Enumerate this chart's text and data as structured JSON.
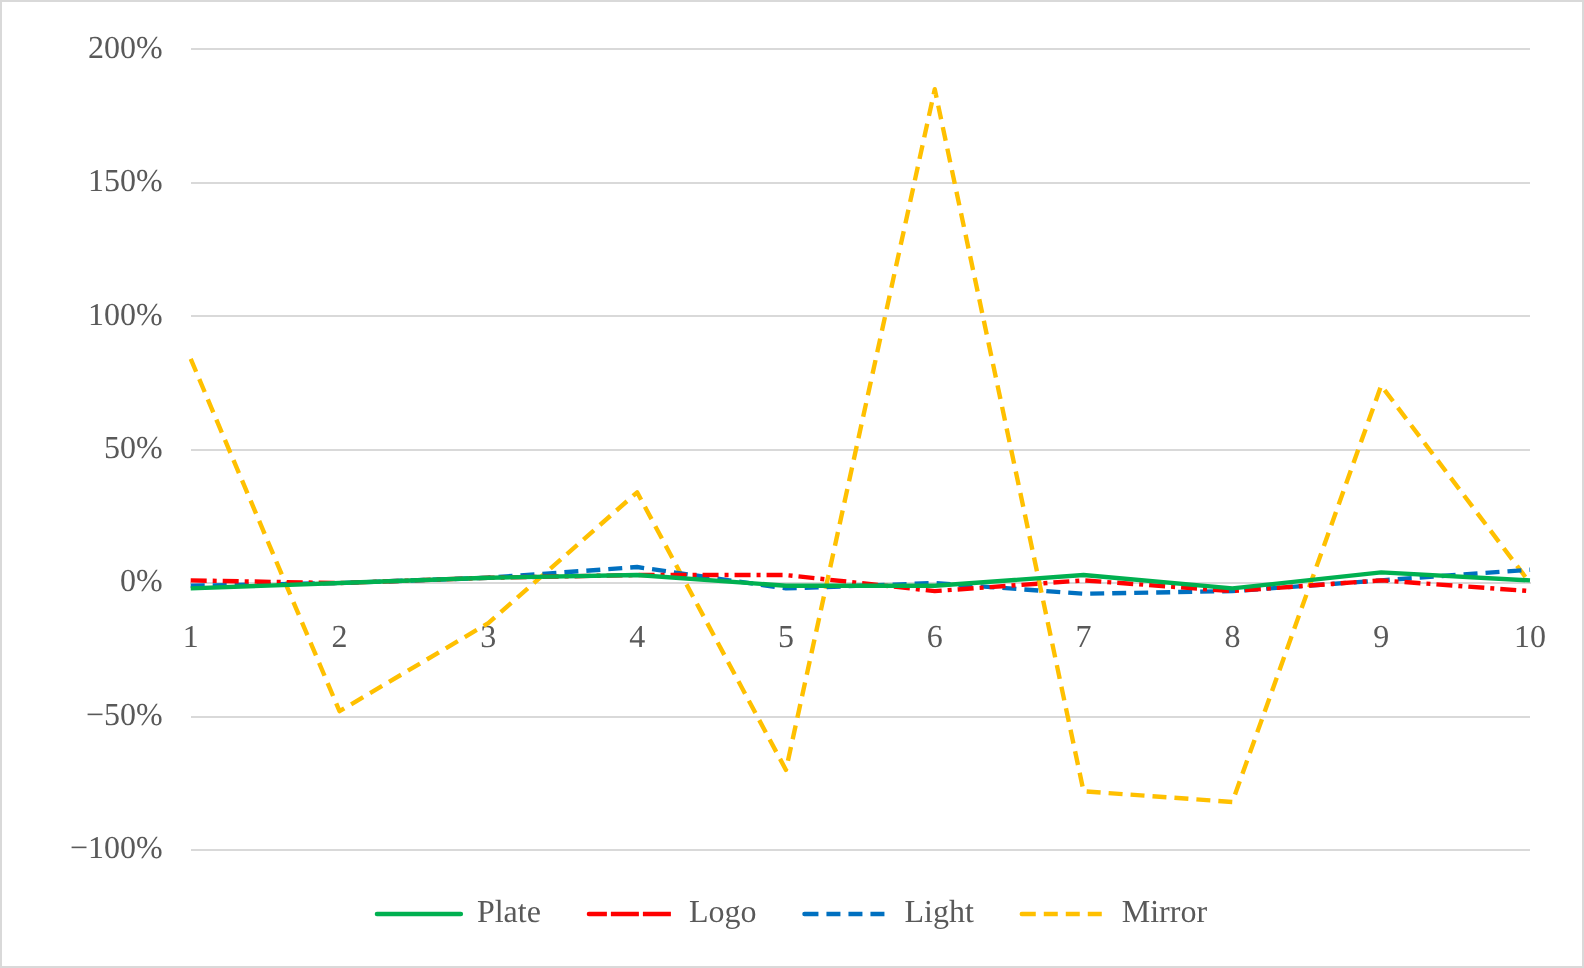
{
  "chart_data": {
    "type": "line",
    "categories": [
      "1",
      "2",
      "3",
      "4",
      "5",
      "6",
      "7",
      "8",
      "9",
      "10"
    ],
    "series": [
      {
        "name": "Plate",
        "color": "#00b050",
        "line_style": "solid",
        "values": [
          -2,
          0,
          2,
          3,
          -1,
          -1,
          3,
          -2,
          4,
          1
        ]
      },
      {
        "name": "Logo",
        "color": "#ff0000",
        "line_style": "dashdot",
        "values": [
          1,
          0,
          2,
          3,
          3,
          -3,
          1,
          -3,
          1,
          -3
        ]
      },
      {
        "name": "Light",
        "color": "#0070c0",
        "line_style": "dashed",
        "values": [
          -1,
          0,
          2,
          6,
          -2,
          0,
          -4,
          -3,
          1,
          5
        ]
      },
      {
        "name": "Mirror",
        "color": "#ffc000",
        "line_style": "dashed",
        "values": [
          84,
          -48,
          -15,
          34,
          -70,
          185,
          -78,
          -82,
          74,
          0
        ]
      }
    ],
    "ylim": [
      -100,
      200
    ],
    "yticks": [
      {
        "value": -100,
        "label": "−100%"
      },
      {
        "value": -50,
        "label": "−50%"
      },
      {
        "value": 0,
        "label": "0%"
      },
      {
        "value": 50,
        "label": "50%"
      },
      {
        "value": 100,
        "label": "100%"
      },
      {
        "value": 150,
        "label": "150%"
      },
      {
        "value": 200,
        "label": "200%"
      }
    ],
    "grid": "y",
    "legend": "bottom",
    "marker": "none"
  }
}
